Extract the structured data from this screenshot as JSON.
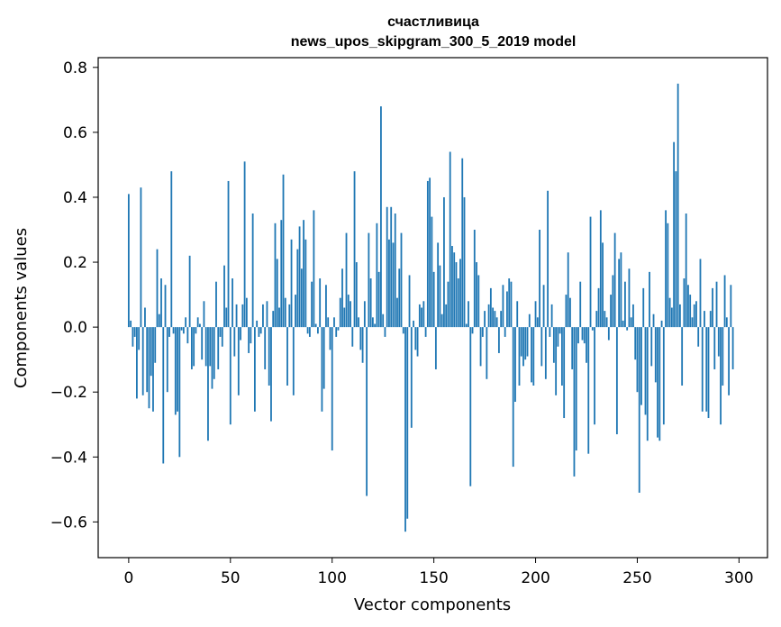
{
  "chart_data": {
    "type": "bar",
    "title": "счастливица",
    "subtitle": "news_upos_skipgram_300_5_2019 model",
    "xlabel": "Vector components",
    "ylabel": "Components values",
    "xlim": [
      -15,
      314
    ],
    "ylim": [
      -0.71,
      0.83
    ],
    "xticks": [
      0,
      50,
      100,
      150,
      200,
      250,
      300
    ],
    "xtick_labels": [
      "0",
      "50",
      "100",
      "150",
      "200",
      "250",
      "300"
    ],
    "yticks": [
      -0.6,
      -0.4,
      -0.2,
      0.0,
      0.2,
      0.4,
      0.6,
      0.8
    ],
    "ytick_labels": [
      "−0.6",
      "−0.4",
      "−0.2",
      "0.0",
      "0.2",
      "0.4",
      "0.6",
      "0.8"
    ],
    "grid": false,
    "bar_color": "#1f77b4",
    "values": [
      0.41,
      0.02,
      -0.06,
      -0.03,
      -0.22,
      -0.07,
      0.43,
      -0.21,
      0.06,
      -0.2,
      -0.25,
      -0.15,
      -0.26,
      -0.11,
      0.24,
      0.04,
      0.15,
      -0.42,
      0.13,
      -0.2,
      -0.03,
      0.48,
      -0.02,
      -0.27,
      -0.26,
      -0.4,
      -0.01,
      -0.02,
      0.03,
      -0.05,
      0.22,
      -0.13,
      -0.12,
      -0.02,
      0.03,
      0.01,
      -0.1,
      0.08,
      -0.12,
      -0.35,
      -0.12,
      -0.19,
      -0.16,
      0.14,
      -0.13,
      -0.03,
      -0.06,
      0.19,
      0.06,
      0.45,
      -0.3,
      0.15,
      -0.09,
      0.07,
      -0.21,
      -0.04,
      0.07,
      0.51,
      0.09,
      -0.08,
      -0.05,
      0.35,
      -0.26,
      0.02,
      -0.03,
      -0.02,
      0.07,
      -0.13,
      0.08,
      -0.18,
      -0.29,
      0.05,
      0.32,
      0.21,
      0.06,
      0.33,
      0.47,
      0.09,
      -0.18,
      0.07,
      0.27,
      -0.21,
      0.1,
      0.24,
      0.31,
      0.18,
      0.33,
      0.27,
      -0.02,
      -0.03,
      0.14,
      0.36,
      0.01,
      -0.02,
      0.15,
      -0.26,
      -0.19,
      0.13,
      0.03,
      -0.07,
      -0.38,
      0.03,
      -0.03,
      -0.01,
      0.09,
      0.18,
      0.06,
      0.29,
      0.1,
      0.08,
      -0.06,
      0.48,
      0.2,
      0.03,
      -0.07,
      -0.11,
      0.08,
      -0.52,
      0.29,
      0.15,
      0.03,
      0.01,
      0.32,
      0.17,
      0.68,
      0.04,
      -0.03,
      0.37,
      0.27,
      0.37,
      0.26,
      0.35,
      0.09,
      0.18,
      0.29,
      -0.02,
      -0.63,
      -0.59,
      0.16,
      -0.31,
      0.02,
      -0.07,
      -0.09,
      0.07,
      0.06,
      0.08,
      -0.03,
      0.45,
      0.46,
      0.34,
      0.17,
      -0.13,
      0.26,
      0.19,
      0.04,
      0.4,
      0.07,
      0.14,
      0.54,
      0.25,
      0.23,
      0.2,
      0.15,
      0.21,
      0.52,
      0.4,
      0.01,
      0.08,
      -0.49,
      -0.02,
      0.3,
      0.2,
      0.16,
      -0.12,
      -0.03,
      0.05,
      -0.16,
      0.07,
      0.12,
      0.06,
      0.05,
      0.03,
      -0.08,
      0.05,
      0.13,
      -0.03,
      0.11,
      0.15,
      0.14,
      -0.43,
      -0.23,
      0.08,
      -0.18,
      -0.09,
      -0.12,
      -0.1,
      -0.09,
      0.04,
      -0.17,
      -0.18,
      0.08,
      0.03,
      0.3,
      -0.12,
      0.13,
      -0.16,
      0.42,
      -0.03,
      0.07,
      -0.11,
      -0.21,
      -0.06,
      -0.02,
      -0.18,
      -0.28,
      0.1,
      0.23,
      0.09,
      -0.13,
      -0.46,
      -0.38,
      -0.05,
      0.14,
      -0.04,
      -0.05,
      -0.11,
      -0.39,
      0.34,
      -0.01,
      -0.3,
      0.05,
      0.12,
      0.36,
      0.26,
      0.05,
      0.03,
      -0.04,
      0.1,
      0.16,
      0.29,
      -0.33,
      0.21,
      0.23,
      0.02,
      0.14,
      -0.01,
      0.18,
      0.03,
      0.07,
      -0.1,
      -0.2,
      -0.51,
      -0.24,
      0.12,
      -0.27,
      -0.35,
      0.17,
      -0.12,
      0.04,
      -0.17,
      -0.34,
      -0.35,
      0.02,
      -0.3,
      0.36,
      0.32,
      0.09,
      0.06,
      0.57,
      0.48,
      0.75,
      0.07,
      -0.18,
      0.15,
      0.35,
      0.13,
      0.1,
      0.03,
      0.07,
      0.08,
      -0.06,
      0.21,
      -0.26,
      0.05,
      -0.26,
      -0.28,
      0.05,
      0.12,
      -0.13,
      0.14,
      -0.09,
      -0.3,
      -0.18,
      0.16,
      0.03,
      -0.21,
      0.13,
      -0.13
    ]
  }
}
